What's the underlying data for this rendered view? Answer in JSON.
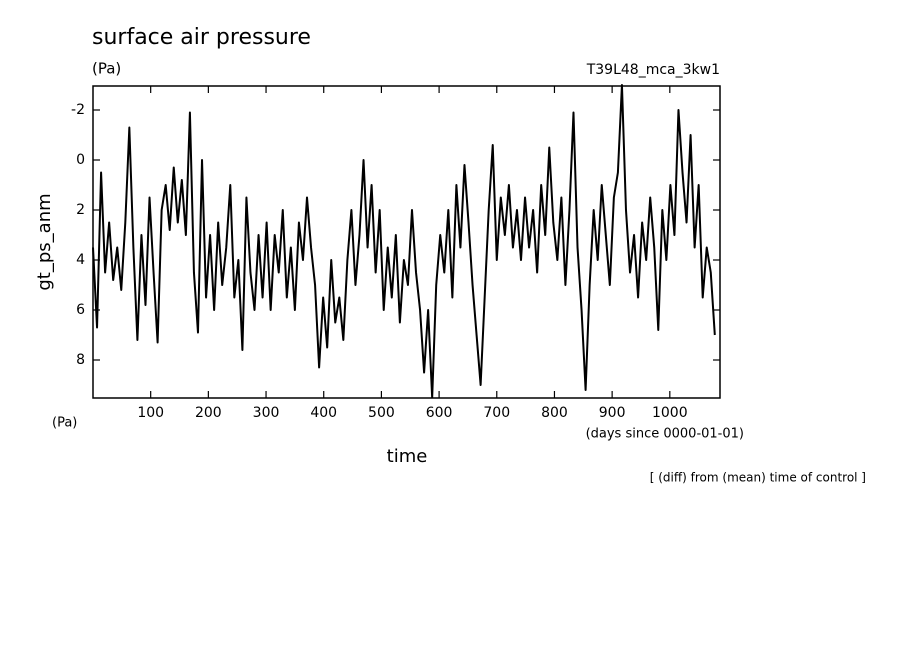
{
  "chart_data": {
    "type": "line",
    "title": "surface air pressure",
    "title_unit": "(Pa)",
    "experiment": "T39L48_mca_3kw1",
    "y_label": "gt_ps_anm",
    "y_unit": "(Pa)",
    "x_label": "time",
    "x_unit": "(days since 0000-01-01)",
    "footnote": "[ (diff) from (mean) time of control ]",
    "color": "#000000",
    "xlim": [
      0,
      1087
    ],
    "xticks": [
      100,
      200,
      300,
      400,
      500,
      600,
      700,
      800,
      900,
      1000
    ],
    "ylim": [
      9.52,
      -2.96
    ],
    "yticks": [
      -2,
      0,
      2,
      4,
      6,
      8
    ],
    "x": [
      0,
      7,
      14,
      21,
      28,
      35,
      42,
      49,
      56,
      63,
      70,
      77,
      84,
      91,
      98,
      105,
      112,
      119,
      126,
      133,
      140,
      147,
      154,
      161,
      168,
      175,
      182,
      189,
      196,
      203,
      210,
      217,
      224,
      231,
      238,
      245,
      252,
      259,
      266,
      273,
      280,
      287,
      294,
      301,
      308,
      315,
      322,
      329,
      336,
      343,
      350,
      357,
      364,
      371,
      378,
      385,
      392,
      399,
      406,
      413,
      420,
      427,
      434,
      441,
      448,
      455,
      462,
      469,
      476,
      483,
      490,
      497,
      504,
      511,
      518,
      525,
      532,
      539,
      546,
      553,
      560,
      567,
      574,
      581,
      588,
      595,
      602,
      609,
      616,
      623,
      630,
      637,
      644,
      651,
      658,
      665,
      672,
      679,
      686,
      693,
      700,
      707,
      714,
      721,
      728,
      735,
      742,
      749,
      756,
      763,
      770,
      777,
      784,
      791,
      798,
      805,
      812,
      819,
      826,
      833,
      840,
      847,
      854,
      861,
      868,
      875,
      882,
      889,
      896,
      903,
      910,
      917,
      924,
      931,
      938,
      945,
      952,
      959,
      966,
      973,
      980,
      987,
      994,
      1001,
      1008,
      1015,
      1022,
      1029,
      1036,
      1043,
      1050,
      1057,
      1064,
      1071,
      1078
    ],
    "values": [
      3.5,
      6.7,
      0.5,
      4.5,
      2.5,
      4.8,
      3.5,
      5.2,
      2.5,
      -1.3,
      3.5,
      7.2,
      3.0,
      5.8,
      1.5,
      4.5,
      7.3,
      2.0,
      1.0,
      2.8,
      0.3,
      2.5,
      0.8,
      3.0,
      -1.9,
      4.5,
      6.9,
      0.0,
      5.5,
      3.0,
      6.0,
      2.5,
      5.0,
      3.5,
      1.0,
      5.5,
      4.0,
      7.6,
      1.5,
      4.5,
      6.0,
      3.0,
      5.5,
      2.5,
      6.0,
      3.0,
      4.5,
      2.0,
      5.5,
      3.5,
      6.0,
      2.5,
      4.0,
      1.5,
      3.5,
      5.0,
      8.3,
      5.5,
      7.5,
      4.0,
      6.5,
      5.5,
      7.2,
      4.0,
      2.0,
      5.0,
      3.0,
      0.0,
      3.5,
      1.0,
      4.5,
      2.0,
      6.0,
      3.5,
      5.5,
      3.0,
      6.5,
      4.0,
      5.0,
      2.0,
      4.5,
      6.0,
      8.5,
      6.0,
      9.5,
      5.0,
      3.0,
      4.5,
      2.0,
      5.5,
      1.0,
      3.5,
      0.2,
      2.5,
      5.0,
      7.0,
      9.0,
      5.5,
      2.0,
      -0.6,
      4.0,
      1.5,
      3.0,
      1.0,
      3.5,
      2.0,
      4.0,
      1.5,
      3.5,
      2.0,
      4.5,
      1.0,
      3.0,
      -0.5,
      2.5,
      4.0,
      1.5,
      5.0,
      2.0,
      -1.9,
      3.5,
      6.0,
      9.2,
      5.0,
      2.0,
      4.0,
      1.0,
      3.0,
      5.0,
      1.5,
      0.5,
      -3.0,
      2.0,
      4.5,
      3.0,
      5.5,
      2.5,
      4.0,
      1.5,
      3.5,
      6.8,
      2.0,
      4.0,
      1.0,
      3.0,
      -2.0,
      0.5,
      2.5,
      -1.0,
      3.5,
      1.0,
      5.5,
      3.5,
      4.5,
      7.0
    ]
  }
}
